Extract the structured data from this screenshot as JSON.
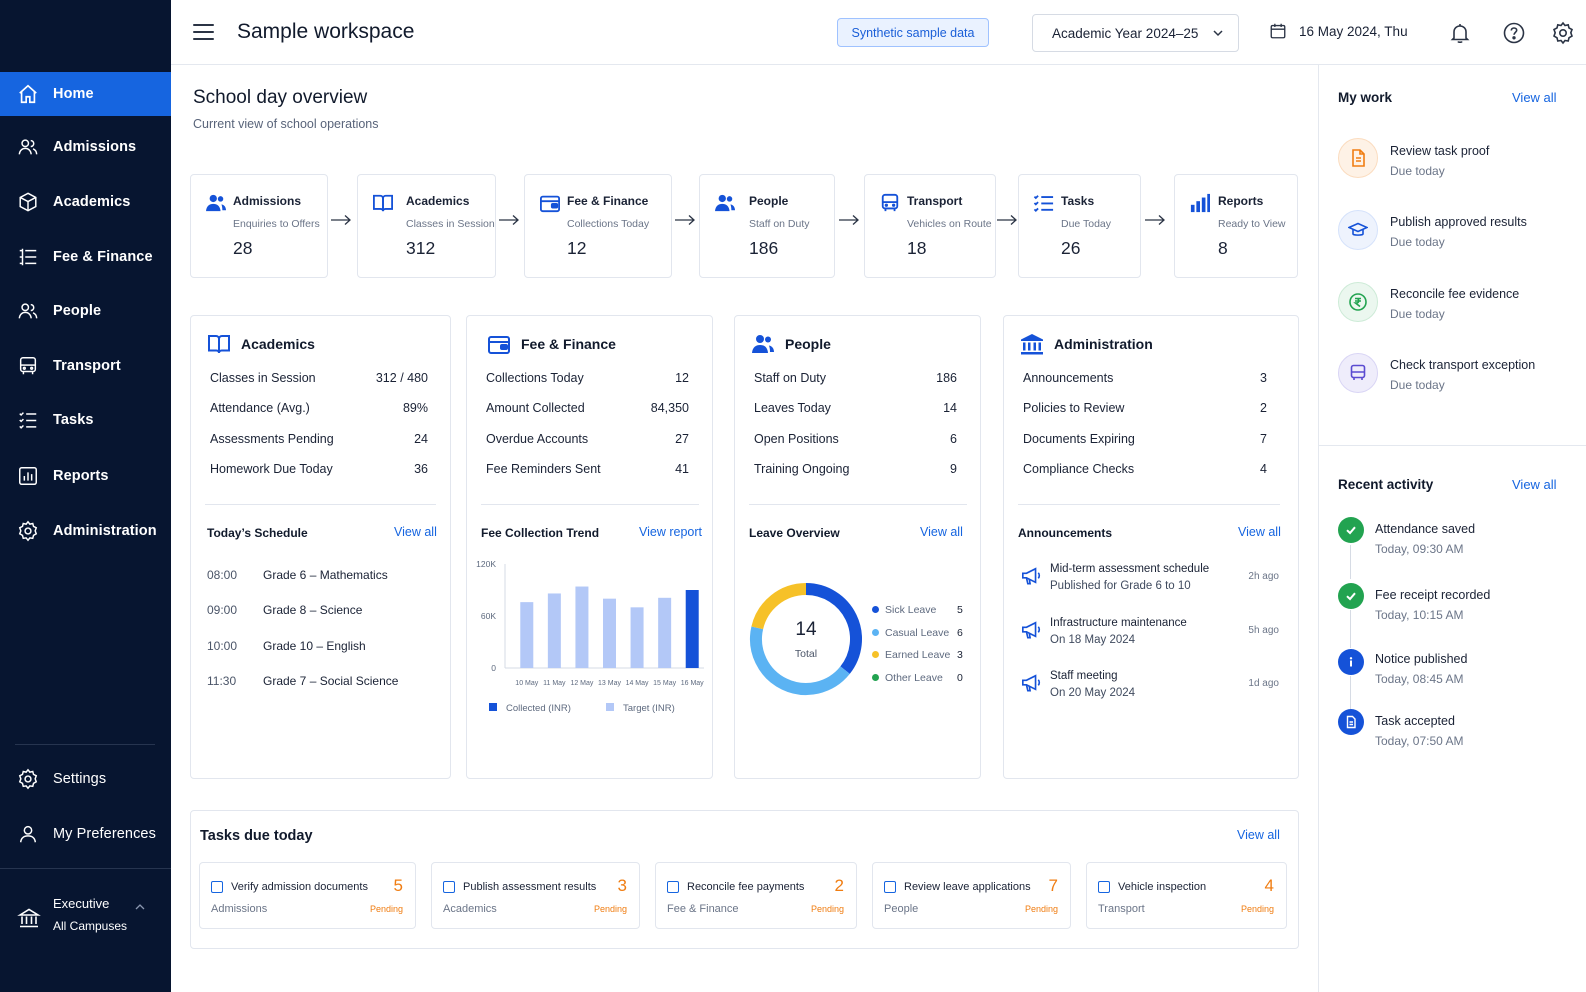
{
  "sidebar": {
    "items": [
      {
        "label": "Home",
        "icon": "home-icon"
      },
      {
        "label": "Admissions",
        "icon": "users-icon"
      },
      {
        "label": "Academics",
        "icon": "cube-icon"
      },
      {
        "label": "Fee & Finance",
        "icon": "ledger-icon"
      },
      {
        "label": "People",
        "icon": "people-icon"
      },
      {
        "label": "Transport",
        "icon": "bus-icon"
      },
      {
        "label": "Tasks",
        "icon": "checklist-icon"
      },
      {
        "label": "Reports",
        "icon": "bar-chart-icon"
      },
      {
        "label": "Administration",
        "icon": "gear-icon"
      }
    ],
    "bottom": [
      {
        "label": "Settings",
        "icon": "gear-icon"
      },
      {
        "label": "My Preferences",
        "icon": "user-icon"
      }
    ],
    "role": {
      "title": "Executive",
      "scope": "All Campuses"
    }
  },
  "topbar": {
    "workspace": "Sample workspace",
    "badge": "Synthetic sample data",
    "year": "Academic Year 2024–25",
    "date": "16 May 2024, Thu"
  },
  "main": {
    "title": "School day overview",
    "subtitle": "Current view of school operations"
  },
  "flow": [
    {
      "name": "Admissions",
      "sub": "Enquiries to Offers",
      "value": "28"
    },
    {
      "name": "Academics",
      "sub": "Classes in Session",
      "value": "312"
    },
    {
      "name": "Fee & Finance",
      "sub": "Collections Today",
      "value": "12"
    },
    {
      "name": "People",
      "sub": "Staff on Duty",
      "value": "186"
    },
    {
      "name": "Transport",
      "sub": "Vehicles on Route",
      "value": "18"
    },
    {
      "name": "Tasks",
      "sub": "Due Today",
      "value": "26"
    },
    {
      "name": "Reports",
      "sub": "Ready to View",
      "value": "8"
    }
  ],
  "academics": {
    "title": "Academics",
    "rows": [
      {
        "label": "Classes in Session",
        "value": "312 / 480"
      },
      {
        "label": "Attendance (Avg.)",
        "value": "89%"
      },
      {
        "label": "Assessments Pending",
        "value": "24"
      },
      {
        "label": "Homework Due Today",
        "value": "36"
      }
    ],
    "schedule_title": "Today’s Schedule",
    "schedule_link": "View all",
    "schedule": [
      {
        "time": "08:00",
        "item": "Grade 6 – Mathematics"
      },
      {
        "time": "09:00",
        "item": "Grade 8 – Science"
      },
      {
        "time": "10:00",
        "item": "Grade 10 – English"
      },
      {
        "time": "11:30",
        "item": "Grade 7 – Social Science"
      }
    ]
  },
  "finance": {
    "title": "Fee & Finance",
    "rows": [
      {
        "label": "Collections Today",
        "value": "12"
      },
      {
        "label": "Amount Collected",
        "value": "84,350"
      },
      {
        "label": "Overdue Accounts",
        "value": "27"
      },
      {
        "label": "Fee Reminders Sent",
        "value": "41"
      }
    ],
    "trend_title": "Fee Collection Trend",
    "trend_link": "View report"
  },
  "people": {
    "title": "People",
    "rows": [
      {
        "label": "Staff on Duty",
        "value": "186"
      },
      {
        "label": "Leaves Today",
        "value": "14"
      },
      {
        "label": "Open Positions",
        "value": "6"
      },
      {
        "label": "Training Ongoing",
        "value": "9"
      }
    ],
    "leave_title": "Leave Overview",
    "leave_link": "View all"
  },
  "administration": {
    "title": "Administration",
    "rows": [
      {
        "label": "Announcements",
        "value": "3"
      },
      {
        "label": "Policies to Review",
        "value": "2"
      },
      {
        "label": "Documents Expiring",
        "value": "7"
      },
      {
        "label": "Compliance Checks",
        "value": "4"
      }
    ],
    "ann_title": "Announcements",
    "ann_link": "View all",
    "announcements": [
      {
        "title": "Mid-term assessment schedule",
        "detail": "Published for Grade 6 to 10",
        "ago": "2h ago"
      },
      {
        "title": "Infrastructure maintenance",
        "detail": "On 18 May 2024",
        "ago": "5h ago"
      },
      {
        "title": "Staff meeting",
        "detail": "On 20 May 2024",
        "ago": "1d ago"
      }
    ]
  },
  "chart_data": [
    {
      "type": "bar",
      "title": "Fee Collection Trend",
      "categories": [
        "10 May",
        "11 May",
        "12 May",
        "13 May",
        "14 May",
        "15 May",
        "16 May"
      ],
      "series": [
        {
          "name": "Collected (INR)",
          "color": "#1552d8",
          "values": [
            null,
            null,
            null,
            null,
            null,
            null,
            90000
          ]
        },
        {
          "name": "Target (INR)",
          "color": "#b3c8f7",
          "values": [
            76000,
            86000,
            94000,
            80000,
            70000,
            81000,
            null
          ]
        }
      ],
      "ylim": [
        0,
        120000
      ],
      "yticks": [
        "0",
        "60K",
        "120K"
      ],
      "yticks_values": [
        0,
        60000,
        120000
      ],
      "legend": "bottom"
    },
    {
      "type": "pie",
      "title": "Leave Overview",
      "center_value": "14",
      "center_label": "Total",
      "slices": [
        {
          "name": "Sick Leave",
          "value": 5,
          "color": "#1552d8"
        },
        {
          "name": "Casual Leave",
          "value": 6,
          "color": "#5bb3f3"
        },
        {
          "name": "Earned Leave",
          "value": 3,
          "color": "#f6c128"
        },
        {
          "name": "Other Leave",
          "value": 0,
          "color": "#22a350"
        }
      ],
      "legend": "right"
    }
  ],
  "tasks": {
    "title": "Tasks due today",
    "link": "View all",
    "items": [
      {
        "name": "Verify admission documents",
        "category": "Admissions",
        "count": "5",
        "status": "Pending"
      },
      {
        "name": "Publish assessment results",
        "category": "Academics",
        "count": "3",
        "status": "Pending"
      },
      {
        "name": "Reconcile fee payments",
        "category": "Fee & Finance",
        "count": "2",
        "status": "Pending"
      },
      {
        "name": "Review leave applications",
        "category": "People",
        "count": "7",
        "status": "Pending"
      },
      {
        "name": "Vehicle inspection",
        "category": "Transport",
        "count": "4",
        "status": "Pending"
      }
    ]
  },
  "my_work": {
    "title": "My work",
    "link": "View all",
    "items": [
      {
        "title": "Review task proof",
        "due": "Due today",
        "icon": "document-icon",
        "color": "#f07d12"
      },
      {
        "title": "Publish approved results",
        "due": "Due today",
        "icon": "graduation-cap-icon",
        "color": "#1552d8"
      },
      {
        "title": "Reconcile fee evidence",
        "due": "Due today",
        "icon": "rupee-icon",
        "color": "#22a350"
      },
      {
        "title": "Check transport exception",
        "due": "Due today",
        "icon": "bus-icon",
        "color": "#5a4bd1"
      }
    ]
  },
  "recent_activity": {
    "title": "Recent activity",
    "link": "View all",
    "items": [
      {
        "title": "Attendance saved",
        "time": "Today, 09:30 AM",
        "icon": "check-icon",
        "color": "#22a350"
      },
      {
        "title": "Fee receipt recorded",
        "time": "Today, 10:15 AM",
        "icon": "check-icon",
        "color": "#22a350"
      },
      {
        "title": "Notice published",
        "time": "Today, 08:45 AM",
        "icon": "info-icon",
        "color": "#1552d8"
      },
      {
        "title": "Task accepted",
        "time": "Today, 07:50 AM",
        "icon": "document-icon",
        "color": "#1552d8"
      }
    ]
  },
  "colors": {
    "sidebar_bg": "#071530",
    "accent": "#1665e0",
    "pending": "#f07d12"
  }
}
